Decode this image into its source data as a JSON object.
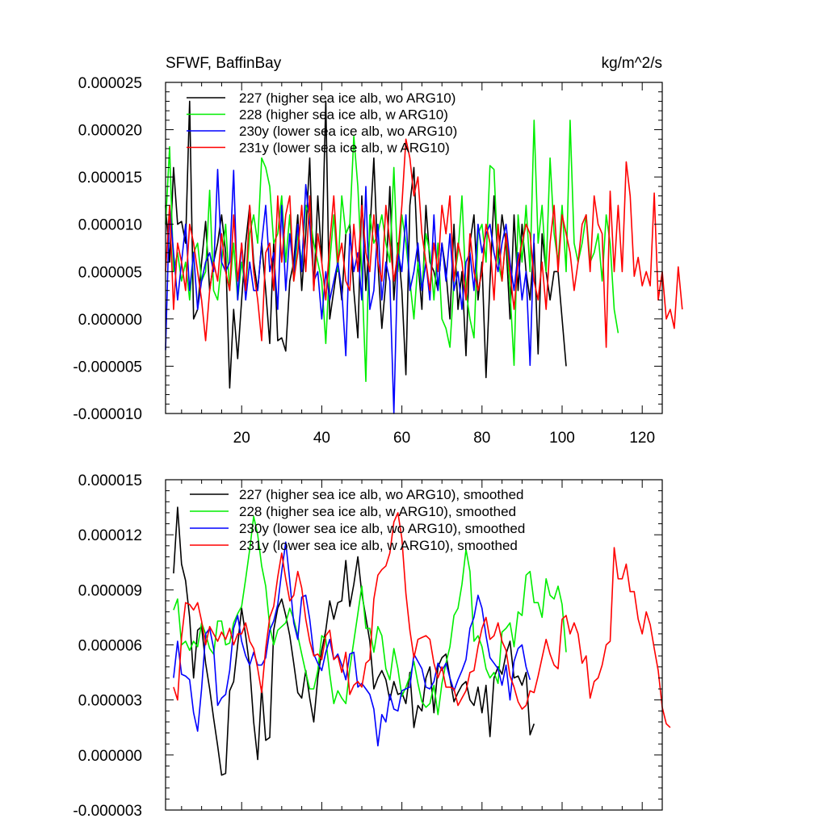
{
  "chart_data": [
    {
      "type": "line",
      "title": "SFWF, BaffinBay",
      "units": "kg/m^2/s",
      "xlim": [
        1,
        125
      ],
      "ylim": [
        -1e-05,
        2.5e-05
      ],
      "x_ticks": [
        20,
        40,
        60,
        80,
        100,
        120
      ],
      "x_tick_labels": [
        "20",
        "40",
        "60",
        "80",
        "100",
        "120"
      ],
      "y_ticks": [
        -1e-05,
        -5e-06,
        0,
        5e-06,
        1e-05,
        1.5e-05,
        2e-05,
        2.5e-05
      ],
      "y_tick_labels": [
        "-0.000010",
        "-0.000005",
        "0.000000",
        "0.000005",
        "0.000010",
        "0.000015",
        "0.000020",
        "0.000025"
      ],
      "x_start": 1,
      "legend_position": "top-left",
      "series": [
        {
          "name": "227 (higher sea ice alb, wo ARG10)",
          "color": "#000000",
          "values": [
            1.2e-05,
            6e-06,
            1.6e-05,
            1e-05,
            1.03e-05,
            8e-06,
            2.3e-05,
            0.0,
            1e-06,
            6e-06,
            1.03e-05,
            3e-06,
            6e-06,
            8e-06,
            1.1e-05,
            7e-06,
            -7.3e-06,
            1e-06,
            -4.2e-06,
            2e-06,
            8e-06,
            1.2e-05,
            6e-06,
            3e-06,
            8e-06,
            3e-06,
            -2.6e-06,
            8e-06,
            -2.3e-06,
            -2e-06,
            -3.4e-06,
            4e-06,
            6e-06,
            1.1e-05,
            3e-06,
            9e-06,
            1.7e-05,
            3e-06,
            1.3e-05,
            6e-06,
            2.3e-05,
            0.0,
            3e-06,
            6e-06,
            2e-06,
            9e-06,
            1e-05,
            3e-06,
            -2e-06,
            1.3e-05,
            3e-06,
            9e-06,
            1.7e-05,
            6e-06,
            -1e-06,
            4e-06,
            1.4e-05,
            2e-06,
            8e-06,
            3e-06,
            -5.9e-06,
            1.2e-05,
            1.6e-05,
            6e-06,
            1e-06,
            1.2e-05,
            6e-06,
            5e-06,
            3e-06,
            8e-06,
            5e-06,
            0.0,
            1e-05,
            1e-06,
            5e-06,
            -3.9e-06,
            8e-06,
            1.1e-05,
            2e-06,
            6e-06,
            -6.2e-06,
            4e-06,
            1.3e-05,
            6e-06,
            1.1e-05,
            8e-06,
            0.0,
            1.1e-05,
            3e-06,
            1e-05,
            5e-06,
            2e-06,
            8e-06,
            -3.7e-06,
            9e-06,
            5e-06,
            2e-06,
            5e-06,
            5e-06,
            0.0,
            -5e-06
          ]
        },
        {
          "name": "228 (higher sea ice alb, w ARG10)",
          "color": "#00ee00",
          "values": [
            1e-05,
            1.82e-05,
            5e-06,
            7e-06,
            4e-06,
            6e-06,
            2e-06,
            7e-06,
            8e-06,
            4e-06,
            5e-06,
            1.36e-05,
            3e-06,
            2e-06,
            6e-06,
            1e-05,
            3e-06,
            8e-06,
            2e-06,
            6e-06,
            3e-06,
            9e-06,
            1.1e-05,
            8e-06,
            1.7e-05,
            1.6e-05,
            1.4e-05,
            8e-06,
            9e-06,
            1.3e-05,
            6e-06,
            1.1e-05,
            4e-06,
            9e-06,
            6e-06,
            1.2e-05,
            1.1e-05,
            8e-06,
            6e-06,
            4e-06,
            -2.6e-06,
            6e-06,
            1.1e-05,
            5e-06,
            1.3e-05,
            9e-06,
            1e-05,
            1.93e-05,
            1.4e-05,
            5e-06,
            -6.6e-06,
            1.1e-05,
            8e-06,
            9e-06,
            1.1e-05,
            8e-06,
            6e-06,
            1.6e-05,
            5e-06,
            1.1e-05,
            8e-06,
            4e-06,
            0.0,
            6e-06,
            3e-06,
            9e-06,
            7e-06,
            2e-06,
            8e-06,
            0.0,
            -1e-06,
            -3e-06,
            4e-06,
            7e-06,
            1.3e-05,
            3e-06,
            0.0,
            -2e-06,
            9e-06,
            1e-05,
            6e-06,
            1.62e-05,
            1.58e-05,
            6e-06,
            4e-06,
            9e-06,
            3e-06,
            -4.9e-06,
            1.1e-05,
            6e-06,
            1.2e-05,
            5e-06,
            2.1e-05,
            8e-06,
            1.2e-05,
            5e-06,
            1.7e-05,
            9e-06,
            6e-06,
            1.2e-05,
            5e-06,
            2.1e-05,
            8e-06,
            6e-06,
            8e-06,
            1.1e-05,
            6e-06,
            7e-06,
            9e-06,
            4e-06,
            1.1e-05,
            8e-06,
            1e-06,
            -1.5e-06
          ]
        },
        {
          "name": "230y (lower sea ice alb, wo ARG10)",
          "color": "#0000ff",
          "values": [
            -3.3e-06,
            1.2e-05,
            7e-06,
            2e-06,
            6e-06,
            1e-05,
            3e-06,
            7e-06,
            1e-06,
            4e-06,
            6e-06,
            7e-06,
            5e-06,
            1.58e-05,
            6e-06,
            5e-06,
            6e-06,
            1.57e-05,
            2e-06,
            8e-06,
            2e-06,
            6e-06,
            3e-06,
            3e-06,
            8e-06,
            1.2e-05,
            5e-06,
            7e-06,
            1e-06,
            1.2e-05,
            3e-06,
            9e-06,
            5e-06,
            1e-05,
            5e-06,
            1.42e-05,
            1e-05,
            4e-06,
            5e-06,
            0.0,
            5e-06,
            2e-06,
            4e-06,
            6e-06,
            3e-06,
            -3.9e-06,
            9e-06,
            5e-06,
            7e-06,
            2e-06,
            1.4e-05,
            1e-06,
            3e-06,
            1e-05,
            2e-06,
            6e-06,
            4e-06,
            -1e-05,
            7e-06,
            5e-06,
            1.1e-05,
            3e-06,
            5e-06,
            8e-06,
            3e-06,
            6e-06,
            2e-06,
            1.1e-05,
            3e-06,
            8e-06,
            4e-06,
            9e-06,
            3e-06,
            5e-06,
            1e-06,
            6e-06,
            7e-06,
            3e-06,
            1e-05,
            7e-06,
            9e-06,
            1e-05,
            7e-06,
            5e-06,
            8e-06,
            1e-05,
            6e-06,
            3e-06,
            7e-06,
            2e-06,
            5e-06,
            -4.9e-06,
            9e-06
          ]
        },
        {
          "name": "231y (lower sea ice alb, w ARG10)",
          "color": "#ff0000",
          "values": [
            5e-06,
            1.2e-05,
            1e-06,
            8e-06,
            6e-06,
            3e-06,
            1e-05,
            8e-06,
            5e-06,
            2e-06,
            -2.3e-06,
            3e-06,
            6e-06,
            4e-06,
            9e-06,
            5e-06,
            3e-06,
            1.1e-05,
            4e-06,
            8e-06,
            3e-06,
            1.2e-05,
            5e-06,
            2e-06,
            -2.3e-06,
            7e-06,
            8e-06,
            3e-06,
            1.3e-05,
            6e-06,
            1.1e-05,
            1.3e-05,
            4e-06,
            7e-06,
            1.2e-05,
            5e-06,
            1.3e-05,
            3e-06,
            9e-06,
            6e-06,
            2e-06,
            8e-06,
            1.3e-05,
            6e-06,
            8e-06,
            4e-06,
            3e-06,
            1e-05,
            5e-06,
            1.2e-05,
            7e-06,
            5e-06,
            1.1e-05,
            6e-06,
            4e-06,
            1.2e-05,
            8e-06,
            4e-06,
            7e-06,
            1.2e-05,
            1.9e-05,
            1.7e-05,
            1.3e-05,
            1.5e-05,
            9e-06,
            6e-06,
            3e-06,
            8e-06,
            5e-06,
            1.2e-05,
            9e-06,
            1.3e-05,
            4e-06,
            8e-06,
            6e-06,
            2e-06,
            9e-06,
            5e-06,
            3e-06,
            5e-06,
            1e-05,
            8e-06,
            2e-06,
            1e-05,
            4e-06,
            9e-06,
            5e-06,
            1e-06,
            6e-06,
            8e-06,
            1e-05,
            9e-06,
            4e-06,
            2e-06,
            6e-06,
            1e-06,
            8e-06,
            1.2e-05,
            5e-06,
            1.1e-05,
            9e-06,
            7e-06,
            3e-06,
            6e-06,
            1e-05,
            1.1e-05,
            5e-06,
            1.3e-05,
            1e-05,
            9e-06,
            -3e-06,
            1.35e-05,
            5e-06,
            1.2e-05,
            5e-06,
            1.66e-05,
            1.3e-05,
            4.5e-06,
            6.5e-06,
            3.5e-06,
            5e-06,
            3.5e-06,
            1.33e-05,
            2e-06,
            5e-06,
            0.0,
            1e-06,
            -1e-06,
            5.5e-06,
            1e-06
          ]
        }
      ]
    },
    {
      "type": "line",
      "title": "",
      "units": "",
      "xlim": [
        1,
        125
      ],
      "ylim": [
        -3e-06,
        1.5e-05
      ],
      "x_ticks": [
        20,
        40,
        60,
        80,
        100,
        120
      ],
      "x_tick_labels": [],
      "y_ticks": [
        -3e-06,
        0,
        3e-06,
        6e-06,
        9e-06,
        1.2e-05,
        1.5e-05
      ],
      "y_tick_labels": [
        "-0.000003",
        "0.000000",
        "0.000003",
        "0.000006",
        "0.000009",
        "0.000012",
        "0.000015"
      ],
      "x_start": 3,
      "legend_position": "top-left",
      "series": [
        {
          "name": "227 (higher sea ice alb, wo ARG10), smoothed",
          "color": "#000000",
          "values": [
            9.9e-06,
            1.35e-05,
            1.04e-05,
            9.5e-06,
            7.5e-06,
            4.2e-06,
            6.8e-06,
            7e-06,
            5e-06,
            3.6e-06,
            2e-06,
            5e-07,
            -1.1e-06,
            -1e-06,
            3.5e-06,
            4e-06,
            6e-06,
            8e-06,
            6.5e-06,
            4.8e-06,
            1.8e-06,
            -2.5e-07,
            3.7e-06,
            8e-07,
            9.5e-07,
            6.8e-06,
            8e-06,
            8.5e-06,
            7.6e-06,
            6.5e-06,
            5e-06,
            3.4e-06,
            3.1e-06,
            4.6e-06,
            3.1e-06,
            1.8e-06,
            4.2e-06,
            5.7e-06,
            6.8e-06,
            8.4e-06,
            7.4e-06,
            8.3e-06,
            8.4e-06,
            1.06e-05,
            8.1e-06,
            9.3e-06,
            1.08e-05,
            8.8e-06,
            7.5e-06,
            6.2e-06,
            3.6e-06,
            4.2e-06,
            4.6e-06,
            4.1e-06,
            3e-06,
            4e-06,
            3.3e-06,
            3.4e-06,
            2.8e-06,
            4.5e-06,
            1.5e-06,
            2.7e-06,
            2.4e-06,
            4.2e-06,
            4.8e-06,
            2.3e-06,
            4.8e-06,
            5.3e-06,
            5.5e-06,
            4.2e-06,
            2.9e-06,
            3.4e-06,
            3.8e-06,
            4e-06,
            3e-06,
            2.7e-06,
            3.7e-06,
            2.3e-06,
            3.8e-06,
            1e-06,
            4.2e-06,
            4.8e-06,
            4.4e-06,
            5.5e-06,
            6.2e-06,
            4.2e-06,
            4.3e-06,
            3.8e-06,
            4.5e-06,
            1.1e-06,
            1.7e-06
          ]
        },
        {
          "name": "228 (higher sea ice alb, w ARG10), smoothed",
          "color": "#00ee00",
          "values": [
            7.9e-06,
            8.5e-06,
            6e-06,
            6.2e-06,
            5.7e-06,
            6.2e-06,
            5.9e-06,
            7.2e-06,
            6.6e-06,
            5.8e-06,
            5.5e-06,
            7.3e-06,
            7.3e-06,
            6e-06,
            6.1e-06,
            7.2e-06,
            7.7e-06,
            8.1e-06,
            9.6e-06,
            1.12e-05,
            1.3e-05,
            1.2e-05,
            1.03e-05,
            9.2e-06,
            7e-06,
            6e-06,
            6.8e-06,
            7e-06,
            7.2e-06,
            8e-06,
            7.4e-06,
            6.5e-06,
            5.5e-06,
            4.5e-06,
            3.6e-06,
            3.6e-06,
            4.6e-06,
            6.5e-06,
            6.3e-06,
            4.4e-06,
            2.8e-06,
            3.5e-06,
            3.1e-06,
            2.8e-06,
            4.7e-06,
            6.2e-06,
            7.7e-06,
            9.2e-06,
            6.9e-06,
            6.9e-06,
            5.6e-06,
            7e-06,
            6.5e-06,
            4.7e-06,
            4.1e-06,
            5.8e-06,
            4.7e-06,
            3.2e-06,
            3.7e-06,
            4.3e-06,
            5.1e-06,
            3.9e-06,
            2.9e-06,
            2.6e-06,
            2.8e-06,
            3.8e-06,
            2.2e-06,
            3.9e-06,
            5e-06,
            5.9e-06,
            7.6e-06,
            8e-06,
            9.3e-06,
            1.12e-05,
            1e-05,
            6.2e-06,
            6.5e-06,
            5.9e-06,
            4.7e-06,
            4.2e-06,
            4.5e-06,
            3.9e-06,
            6.7e-06,
            6.9e-06,
            7.2e-06,
            5.9e-06,
            7.8e-06,
            7.6e-06,
            9.8e-06,
            1e-05,
            8.3e-06,
            8.3e-06,
            7.5e-06,
            9.6e-06,
            8.7e-06,
            8.5e-06,
            9.2e-06,
            8.2e-06,
            5.6e-06
          ]
        },
        {
          "name": "230y (lower sea ice alb, wo ARG10), smoothed",
          "color": "#0000ff",
          "values": [
            4.2e-06,
            6.2e-06,
            4.4e-06,
            4.3e-06,
            4.1e-06,
            2.3e-06,
            1.3e-06,
            3.6e-06,
            6.6e-06,
            6.9e-06,
            5.8e-06,
            2.7e-06,
            3.1e-06,
            3.3e-06,
            4.6e-06,
            6.9e-06,
            7.6e-06,
            6.2e-06,
            5.4e-06,
            4.9e-06,
            5.6e-06,
            4.9e-06,
            4.9e-06,
            5.3e-06,
            6.8e-06,
            7.3e-06,
            8.2e-06,
            1e-05,
            1.16e-05,
            9.5e-06,
            7.2e-06,
            6.3e-06,
            8.6e-06,
            8.7e-06,
            7.4e-06,
            5.5e-06,
            5e-06,
            4.6e-06,
            5.6e-06,
            6.3e-06,
            5.2e-06,
            5.5e-06,
            4.9e-06,
            4.1e-06,
            5.5e-06,
            5.6e-06,
            3.7e-06,
            3.9e-06,
            3.6e-06,
            3.3e-06,
            2.5e-06,
            5e-07,
            2.2e-06,
            1.8e-06,
            3.3e-06,
            2.5e-06,
            2.4e-06,
            3.5e-06,
            3.6e-06,
            3.7e-06,
            5.5e-06,
            5.1e-06,
            4.7e-06,
            3.7e-06,
            3.6e-06,
            4e-06,
            5e-06,
            4.6e-06,
            5e-06,
            4.2e-06,
            3.5e-06,
            4.1e-06,
            4.6e-06,
            5.2e-06,
            6.9e-06,
            7.5e-06,
            8.7e-06,
            8e-06,
            6.5e-06,
            5.3e-06,
            5e-06,
            4.7e-06,
            3.8e-06,
            4.9e-06,
            3e-06,
            5.1e-06,
            5.8e-06,
            6e-06,
            4.8e-06,
            4.1e-06
          ]
        },
        {
          "name": "231y (lower sea ice alb, w ARG10), smoothed",
          "color": "#ff0000",
          "values": [
            3.7e-06,
            3e-06,
            6.4e-06,
            8.3e-06,
            8.2e-06,
            7.9e-06,
            8.3e-06,
            7.3e-06,
            6e-06,
            7e-06,
            6.6e-06,
            6.2e-06,
            6.7e-06,
            6.3e-06,
            6.9e-06,
            6e-06,
            6.6e-06,
            6.6e-06,
            7.2e-06,
            6.2e-06,
            5.8e-06,
            4.7e-06,
            3.4e-06,
            5.8e-06,
            7.5e-06,
            8.1e-06,
            9.7e-06,
            1.1e-05,
            9.6e-06,
            8.4e-06,
            8.7e-06,
            1e-05,
            9.1e-06,
            7.4e-06,
            6.2e-06,
            5.4e-06,
            5.5e-06,
            5.2e-06,
            6.5e-06,
            6.8e-06,
            5.2e-06,
            5.4e-06,
            4.5e-06,
            5.6e-06,
            3.3e-06,
            3.8e-06,
            4e-06,
            3.7e-06,
            5e-06,
            5.2e-06,
            8.5e-06,
            9.8e-06,
            1.01e-05,
            1.03e-05,
            1.1e-05,
            1.27e-05,
            1.32e-05,
            1.18e-05,
            8.8e-06,
            6.8e-06,
            5.3e-06,
            6.3e-06,
            6.4e-06,
            6.5e-06,
            6.3e-06,
            5e-06,
            4.2e-06,
            4.8e-06,
            3.7e-06,
            3.7e-06,
            3.6e-06,
            2.7e-06,
            3.1e-06,
            3.5e-06,
            4.5e-06,
            4.6e-06,
            5.9e-06,
            6.9e-06,
            7.5e-06,
            6.3e-06,
            6.5e-06,
            7.2e-06,
            6.2e-06,
            5.7e-06,
            4.3e-06,
            3.7e-06,
            2.9e-06,
            2.5e-06,
            2.7e-06,
            3.5e-06,
            3.4e-06,
            4.3e-06,
            5.3e-06,
            6.3e-06,
            5.5e-06,
            4.9e-06,
            4.7e-06,
            7.4e-06,
            7.6e-06,
            6.6e-06,
            7.2e-06,
            6.6e-06,
            5e-06,
            5.4e-06,
            3.1e-06,
            4e-06,
            4.2e-06,
            4.9e-06,
            6e-06,
            6.2e-06,
            1.13e-05,
            9.6e-06,
            9.6e-06,
            1.04e-05,
            8.9e-06,
            8.9e-06,
            7.4e-06,
            6.6e-06,
            7.8e-06,
            7.1e-06,
            5.8e-06,
            4.6e-06,
            2.6e-06,
            1.7e-06,
            1.5e-06
          ]
        }
      ]
    }
  ]
}
